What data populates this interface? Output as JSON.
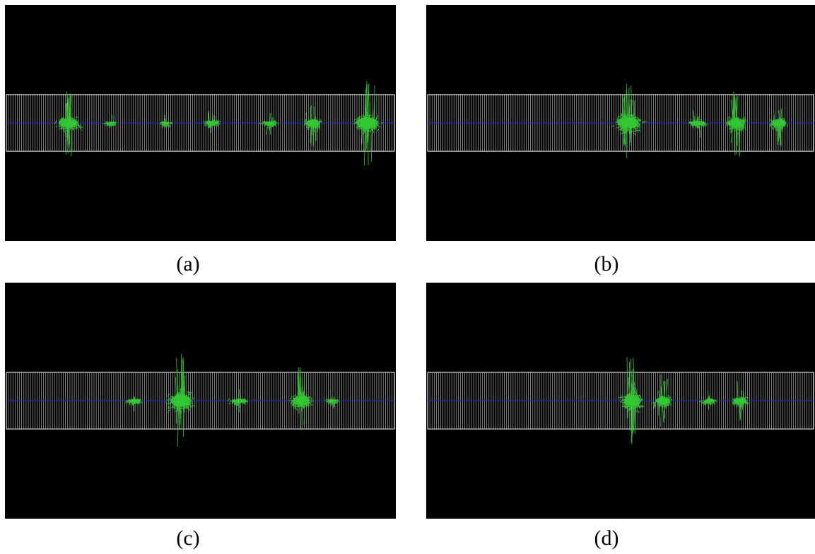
{
  "figure": {
    "panels": [
      {
        "id": "a",
        "caption": "(a)",
        "clusters": [
          {
            "center": 0.16,
            "size": 1.0,
            "spread": 0.045
          },
          {
            "center": 0.27,
            "size": 0.25,
            "spread": 0.02
          },
          {
            "center": 0.41,
            "size": 0.25,
            "spread": 0.02
          },
          {
            "center": 0.53,
            "size": 0.45,
            "spread": 0.03
          },
          {
            "center": 0.68,
            "size": 0.4,
            "spread": 0.03
          },
          {
            "center": 0.79,
            "size": 0.7,
            "spread": 0.035
          },
          {
            "center": 0.93,
            "size": 1.3,
            "spread": 0.05
          }
        ]
      },
      {
        "id": "b",
        "caption": "(b)",
        "clusters": [
          {
            "center": 0.52,
            "size": 1.3,
            "spread": 0.05
          },
          {
            "center": 0.7,
            "size": 0.5,
            "spread": 0.035
          },
          {
            "center": 0.8,
            "size": 1.0,
            "spread": 0.04
          },
          {
            "center": 0.91,
            "size": 0.7,
            "spread": 0.035
          }
        ]
      },
      {
        "id": "c",
        "caption": "(c)",
        "clusters": [
          {
            "center": 0.33,
            "size": 0.35,
            "spread": 0.03
          },
          {
            "center": 0.45,
            "size": 1.4,
            "spread": 0.05
          },
          {
            "center": 0.6,
            "size": 0.4,
            "spread": 0.035
          },
          {
            "center": 0.76,
            "size": 1.0,
            "spread": 0.04
          },
          {
            "center": 0.84,
            "size": 0.3,
            "spread": 0.02
          }
        ]
      },
      {
        "id": "d",
        "caption": "(d)",
        "clusters": [
          {
            "center": 0.53,
            "size": 1.3,
            "spread": 0.04
          },
          {
            "center": 0.61,
            "size": 0.8,
            "spread": 0.035
          },
          {
            "center": 0.73,
            "size": 0.35,
            "spread": 0.025
          },
          {
            "center": 0.81,
            "size": 0.6,
            "spread": 0.03
          }
        ]
      }
    ],
    "colors": {
      "background": "#000000",
      "grid": "#ffffff",
      "axis": "#2a2acc",
      "particles": "#33cc33"
    }
  }
}
